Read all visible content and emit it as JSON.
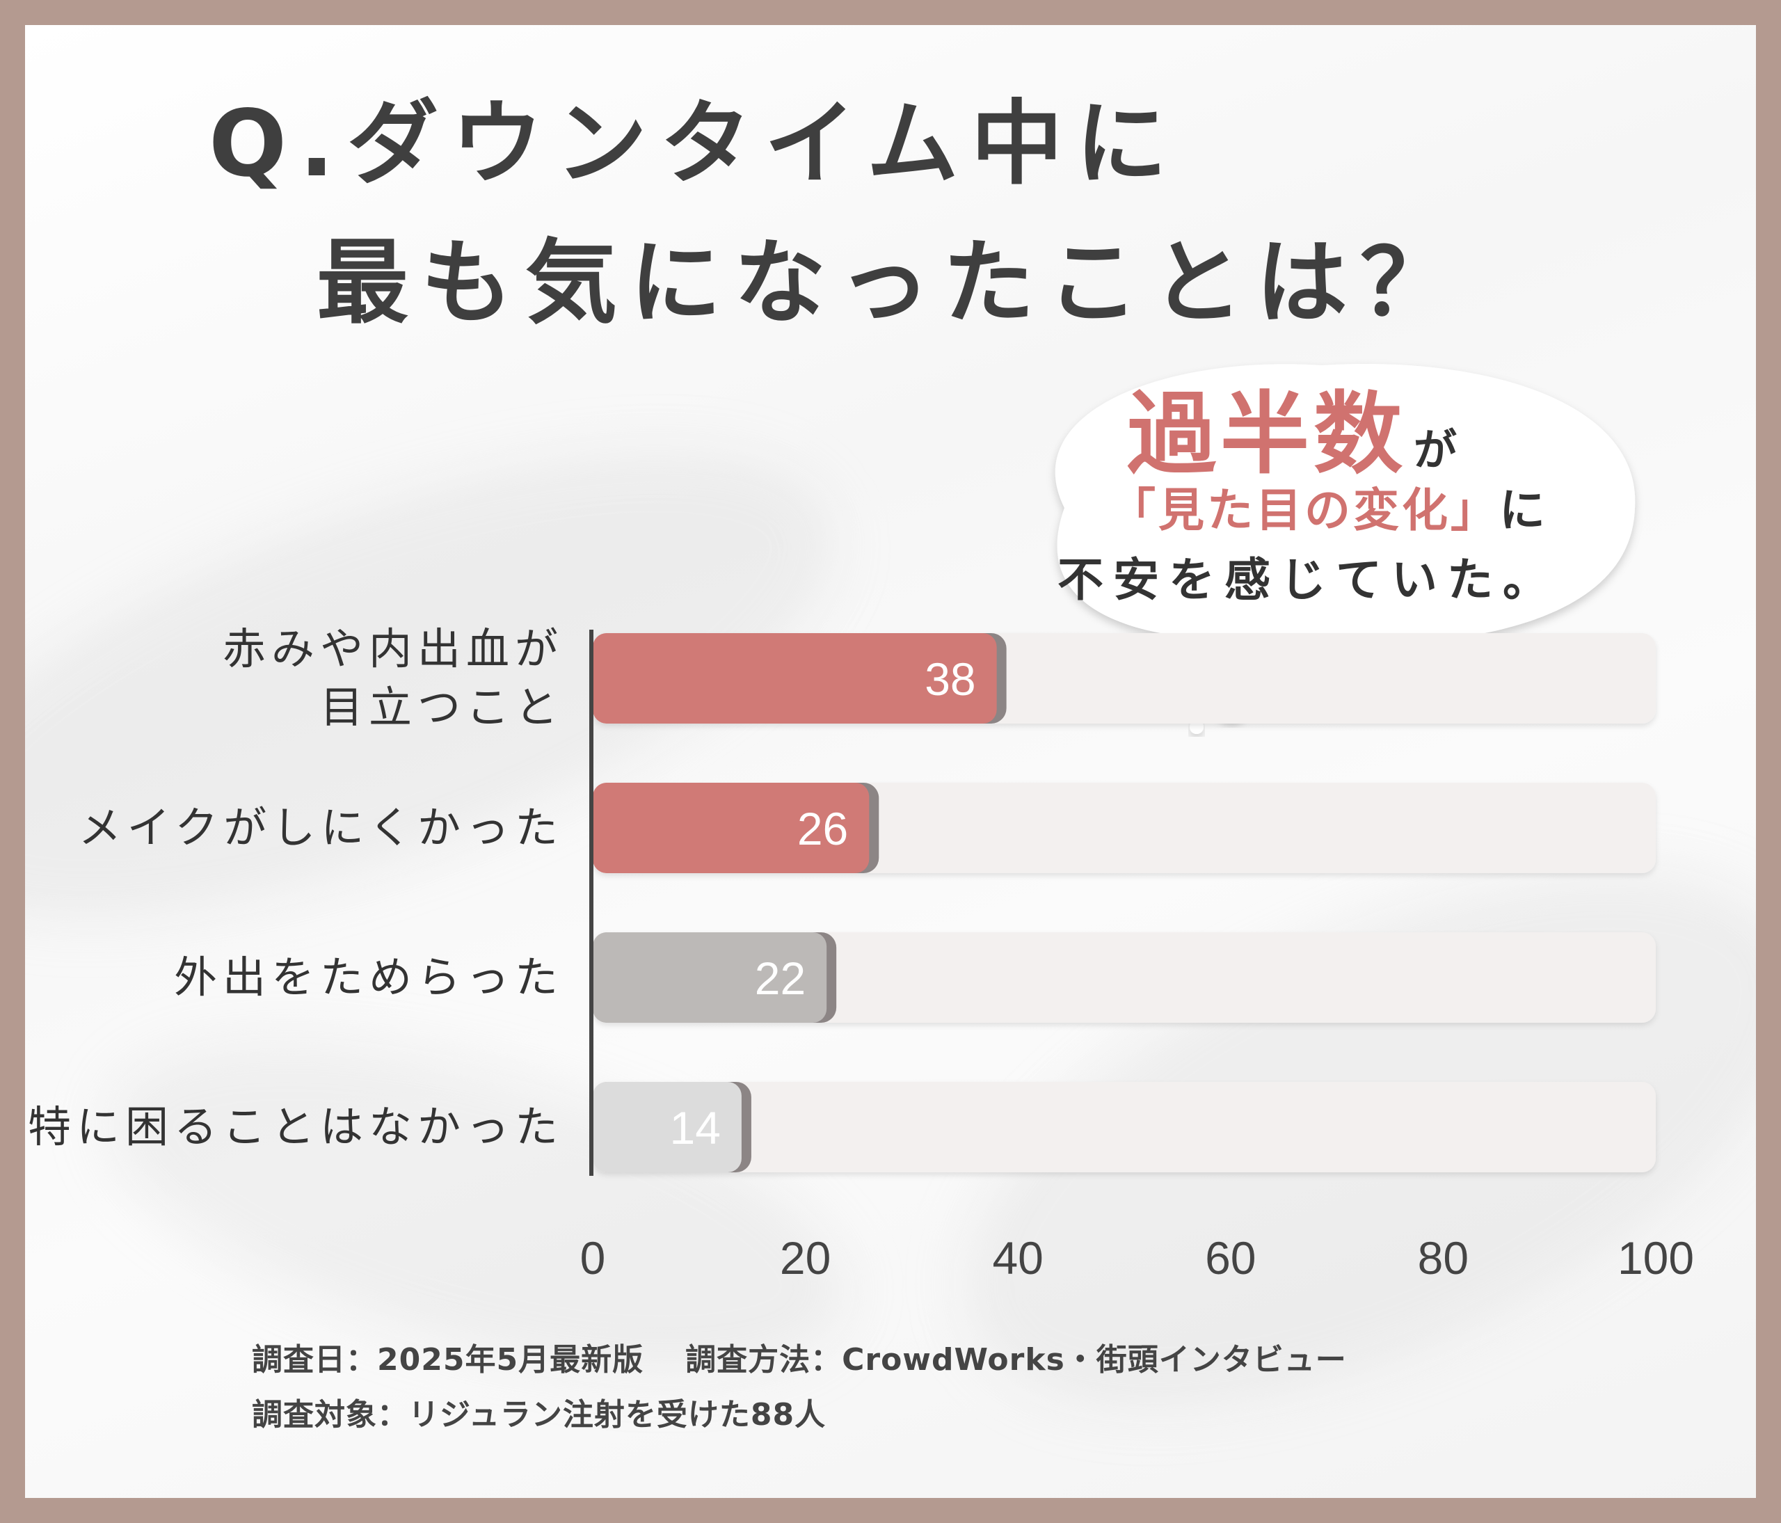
{
  "title": {
    "line1": "Q.ダウンタイム中に",
    "line2": "最も気になったことは？"
  },
  "callout": {
    "line1_big": "過半数",
    "line1_small": "が",
    "line2_highlight": "「見た目の変化」",
    "line2_rest": "に",
    "line3": "不安を感じていた。"
  },
  "colors": {
    "highlight": "#d07a76",
    "gray_mid": "#bcb9b7",
    "gray_light": "#dcdcdc",
    "track": "#f3f0ef",
    "axis": "#444444"
  },
  "chart_data": {
    "type": "bar",
    "orientation": "horizontal",
    "categories": [
      "赤みや内出血が\n目立つこと",
      "メイクがしにくかった",
      "外出をためらった",
      "特に困ることはなかった"
    ],
    "values": [
      38,
      26,
      22,
      14
    ],
    "bar_colors": [
      "#d07a76",
      "#d07a76",
      "#bcb9b7",
      "#dcdcdc"
    ],
    "xlim": [
      0,
      100
    ],
    "xticks": [
      0,
      20,
      40,
      60,
      80,
      100
    ],
    "grid": false
  },
  "footnotes": {
    "date": "調査日：2025年5月最新版",
    "method": "調査方法：CrowdWorks・街頭インタビュー",
    "target": "調査対象：リジュラン注射を受けた88人"
  }
}
